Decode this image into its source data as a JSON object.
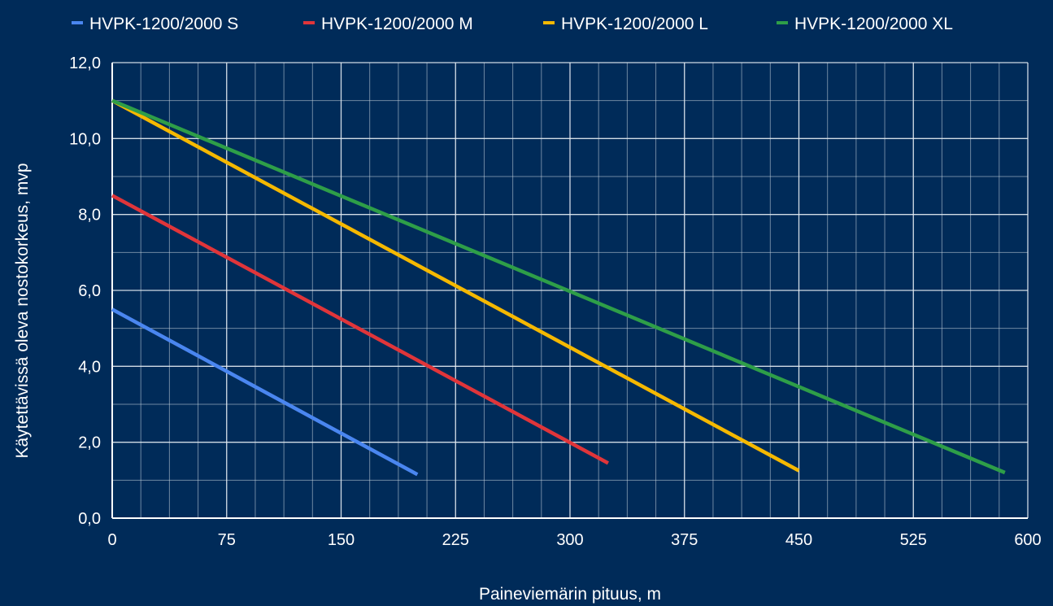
{
  "chart_data": {
    "type": "line",
    "title": "",
    "xlabel": "Paineviemärin pituus, m",
    "ylabel": "Käytettävissä oleva nostokorkeus, mvp",
    "xlim": [
      0,
      600
    ],
    "ylim": [
      0,
      12
    ],
    "x_ticks": [
      "0",
      "75",
      "150",
      "225",
      "300",
      "375",
      "450",
      "525",
      "600"
    ],
    "y_ticks": [
      "0,0",
      "2,0",
      "4,0",
      "6,0",
      "8,0",
      "10,0",
      "12,0"
    ],
    "minor_x_step": 18.75,
    "minor_y_step": 1,
    "grid": true,
    "legend_position": "top",
    "series": [
      {
        "name": "HVPK-1200/2000 S",
        "color": "#4a86f0",
        "points": [
          [
            0,
            5.5
          ],
          [
            200,
            1.15
          ]
        ]
      },
      {
        "name": "HVPK-1200/2000 M",
        "color": "#e0353a",
        "points": [
          [
            0,
            8.5
          ],
          [
            325,
            1.45
          ]
        ]
      },
      {
        "name": "HVPK-1200/2000 L",
        "color": "#f5b800",
        "points": [
          [
            0,
            11.0
          ],
          [
            450,
            1.25
          ]
        ]
      },
      {
        "name": "HVPK-1200/2000 XL",
        "color": "#2e9e48",
        "points": [
          [
            0,
            11.0
          ],
          [
            585,
            1.2
          ]
        ]
      }
    ]
  }
}
